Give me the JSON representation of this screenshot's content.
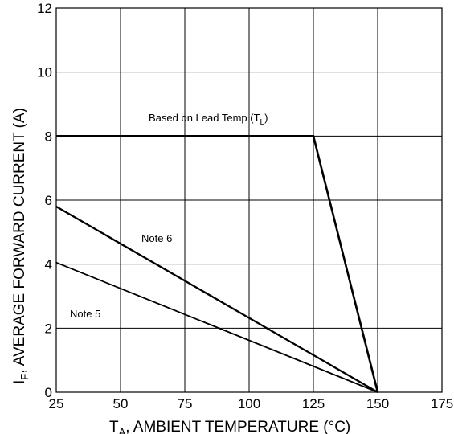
{
  "chart_data": {
    "type": "line",
    "xlabel_main": "T",
    "xlabel_sub": "A",
    "xlabel_rest": ", AMBIENT TEMPERATURE (°C)",
    "ylabel_main": "I",
    "ylabel_sub": "F",
    "ylabel_rest": ", AVERAGE FORWARD CURRENT (A)",
    "xlim": [
      25,
      175
    ],
    "ylim": [
      0,
      12
    ],
    "x_ticks": [
      25,
      50,
      75,
      100,
      125,
      150,
      175
    ],
    "y_ticks": [
      0,
      2,
      4,
      6,
      8,
      10,
      12
    ],
    "grid": true,
    "series": [
      {
        "name": "Based on Lead Temp (T",
        "name_sub": "L",
        "name_close": ")",
        "x": [
          25,
          125,
          150
        ],
        "y": [
          8,
          8,
          0
        ]
      },
      {
        "name": "Note 6",
        "x": [
          25,
          150
        ],
        "y": [
          5.8,
          0
        ]
      },
      {
        "name": "Note 5",
        "x": [
          25,
          150
        ],
        "y": [
          4.05,
          0
        ]
      }
    ]
  }
}
